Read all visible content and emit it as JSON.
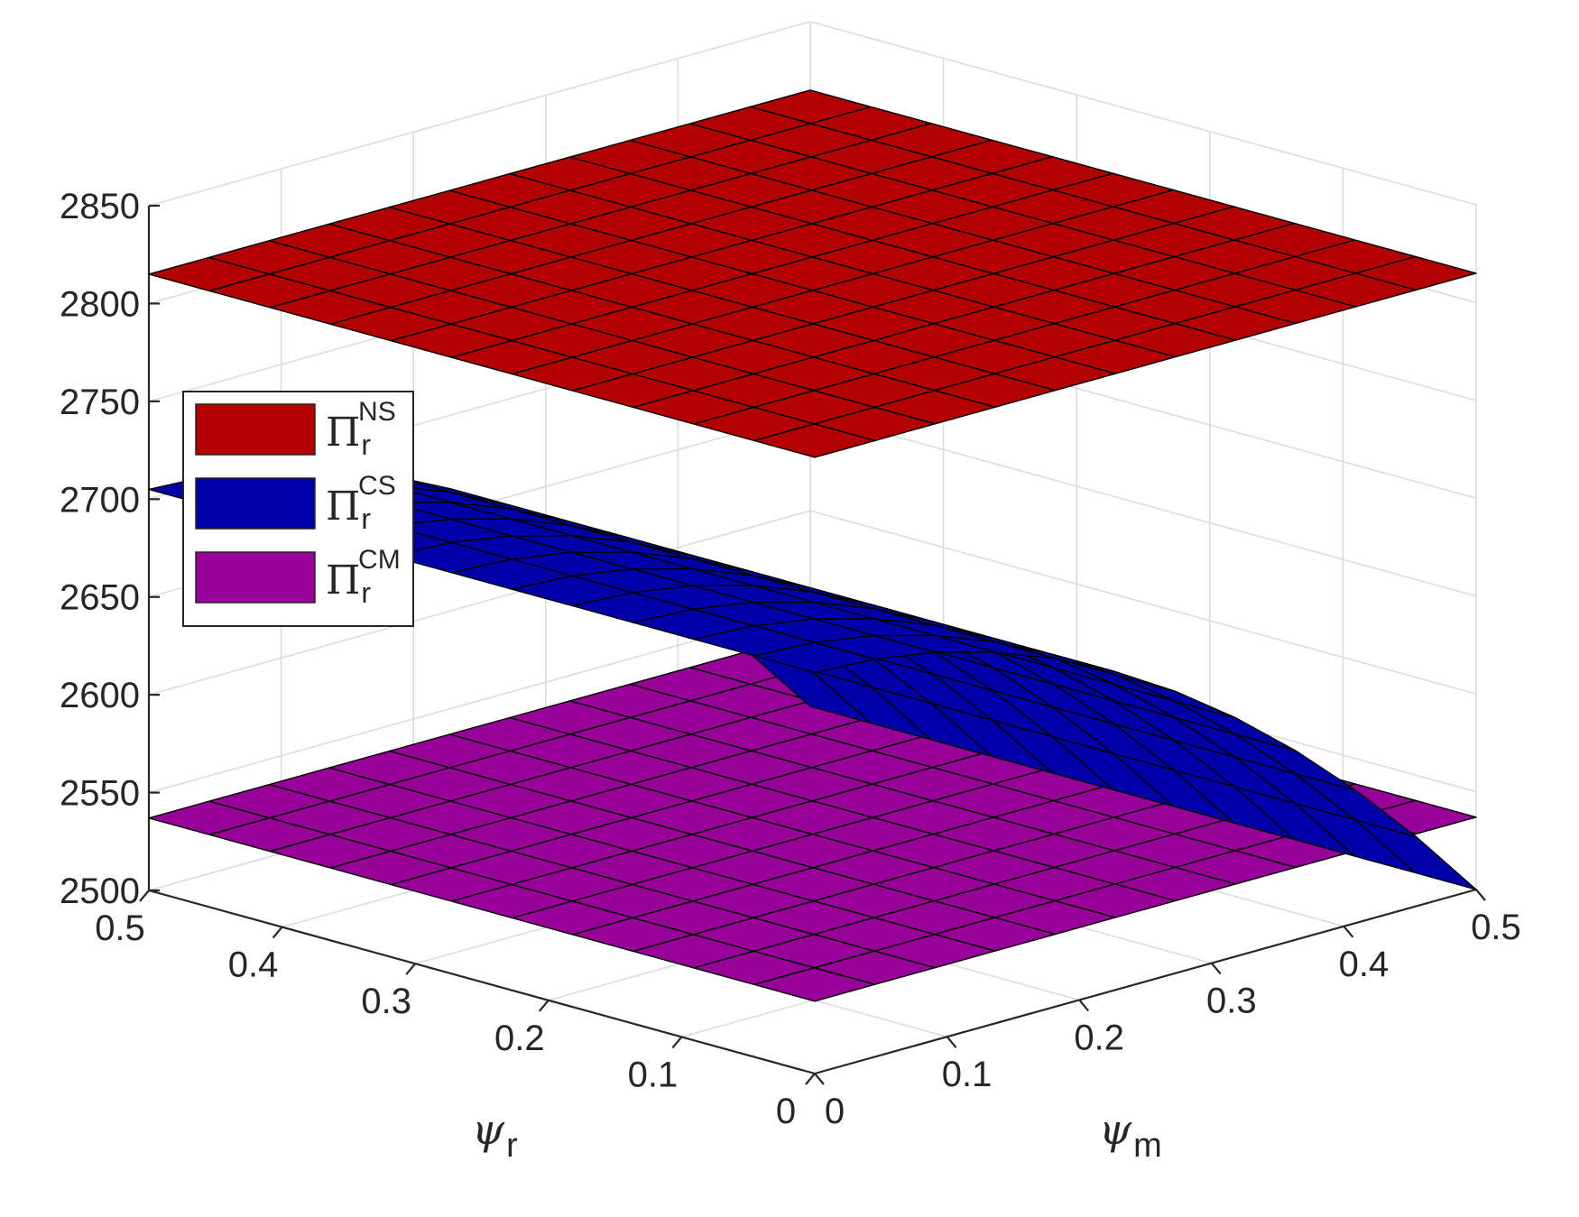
{
  "chart_data": {
    "type": "surface",
    "x_label": {
      "symbol": "ψ",
      "subscript": "m"
    },
    "y_label": {
      "symbol": "ψ",
      "subscript": "r"
    },
    "x_range": [
      0,
      0.5
    ],
    "y_range": [
      0,
      0.5
    ],
    "z_range": [
      2500,
      2850
    ],
    "x_ticks": [
      "0",
      "0.1",
      "0.2",
      "0.3",
      "0.4",
      "0.5"
    ],
    "y_ticks": [
      "0",
      "0.1",
      "0.2",
      "0.3",
      "0.4",
      "0.5"
    ],
    "z_ticks": [
      "2500",
      "2550",
      "2600",
      "2650",
      "2700",
      "2750",
      "2800",
      "2850"
    ],
    "grid": true,
    "legend_position": "left",
    "grid_resolution": 11,
    "series": [
      {
        "symbol": "Π",
        "subscript": "r",
        "superscript": "NS",
        "color": "#b30000",
        "model": "constant",
        "z": 2815
      },
      {
        "symbol": "Π",
        "subscript": "r",
        "superscript": "CS",
        "color": "#0000a8",
        "model": "quadratic_in_x",
        "z_at_x0": 2705,
        "z_at_x_max": 2500
      },
      {
        "symbol": "Π",
        "subscript": "r",
        "superscript": "CM",
        "color": "#990099",
        "model": "constant",
        "z": 2537
      }
    ]
  }
}
